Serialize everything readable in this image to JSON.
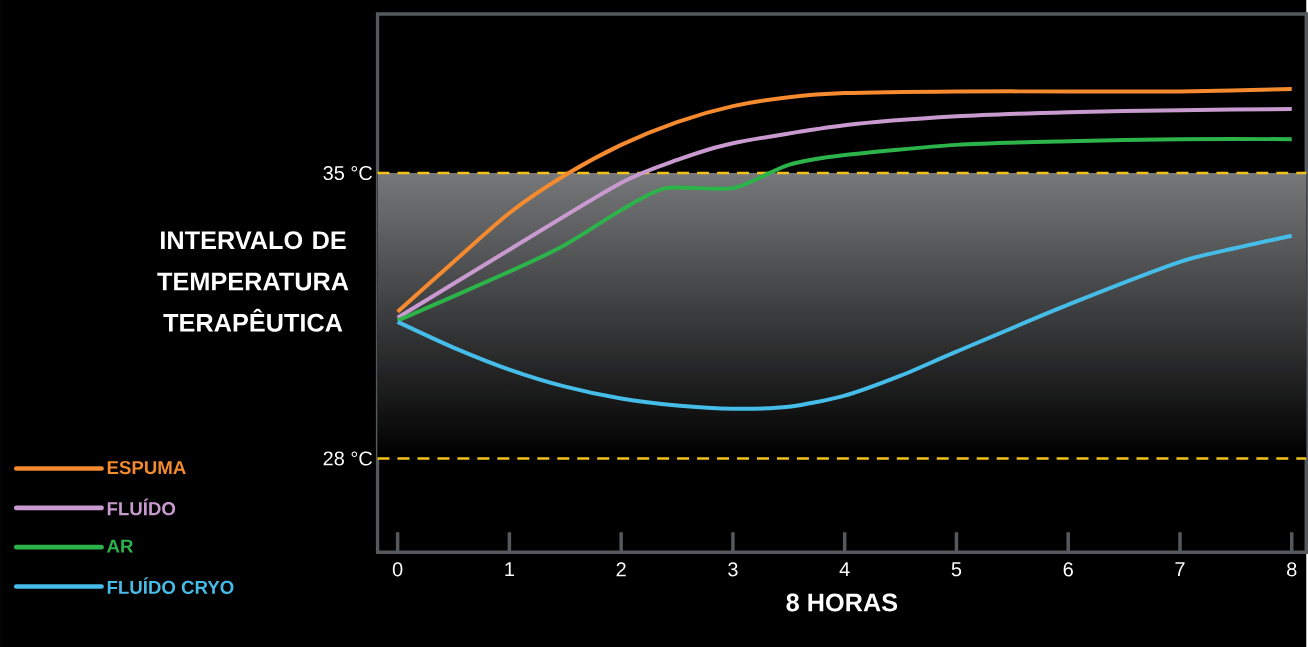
{
  "chart_data": {
    "type": "line",
    "xlabel": "8 HORAS",
    "xlim": [
      -0.18,
      8.13
    ],
    "ylim": [
      25.7,
      38.9
    ],
    "xticks": [
      0,
      1,
      2,
      3,
      4,
      5,
      6,
      7,
      8
    ],
    "yticks": [
      {
        "value": 28,
        "label": "28 °C"
      },
      {
        "value": 35,
        "label": "35 °C"
      }
    ],
    "line_style": "solid",
    "legend": "bottom left",
    "ref_lines": [
      {
        "axis": "y",
        "value": 35,
        "color": "#f2c21b",
        "line_style": "dashed"
      },
      {
        "axis": "y",
        "value": 28,
        "color": "#f2c21b",
        "line_style": "dashed"
      }
    ],
    "bands": [
      {
        "axis": "y",
        "from": 28,
        "to": 35,
        "label": "INTERVALO DE TEMPERATURA TERAPÊUTICA",
        "color": "#76787a"
      }
    ],
    "series": [
      {
        "name": "ESPUMA",
        "color": "#f58a2f",
        "x": [
          0,
          0.5,
          1,
          1.5,
          2,
          2.5,
          3,
          3.5,
          4,
          5,
          6,
          7,
          8
        ],
        "values": [
          31.6,
          32.82,
          34.02,
          34.95,
          35.69,
          36.25,
          36.64,
          36.86,
          36.96,
          37.0,
          37.0,
          37.0,
          37.06
        ]
      },
      {
        "name": "FLUÍDO",
        "color": "#c99ad0",
        "x": [
          0,
          1,
          2,
          2.5,
          3,
          4,
          5,
          6,
          7,
          8
        ],
        "values": [
          31.45,
          33.12,
          34.76,
          35.32,
          35.73,
          36.17,
          36.39,
          36.49,
          36.54,
          36.57
        ]
      },
      {
        "name": "AR",
        "color": "#2cb34a",
        "x": [
          0,
          1,
          1.5,
          2,
          2.4,
          3,
          3.5,
          4,
          5,
          6,
          7,
          8
        ],
        "values": [
          31.38,
          32.58,
          33.24,
          34.09,
          34.63,
          34.63,
          35.2,
          35.44,
          35.69,
          35.78,
          35.83,
          35.83
        ]
      },
      {
        "name": "FLUÍDO CRYO",
        "color": "#46bde8",
        "x": [
          0,
          0.5,
          1,
          1.5,
          2,
          2.5,
          3,
          3.5,
          4,
          4.5,
          5,
          6,
          7,
          7.5,
          8
        ],
        "values": [
          31.35,
          30.72,
          30.18,
          29.76,
          29.47,
          29.3,
          29.22,
          29.27,
          29.54,
          30.03,
          30.62,
          31.77,
          32.82,
          33.16,
          33.46
        ]
      }
    ]
  }
}
